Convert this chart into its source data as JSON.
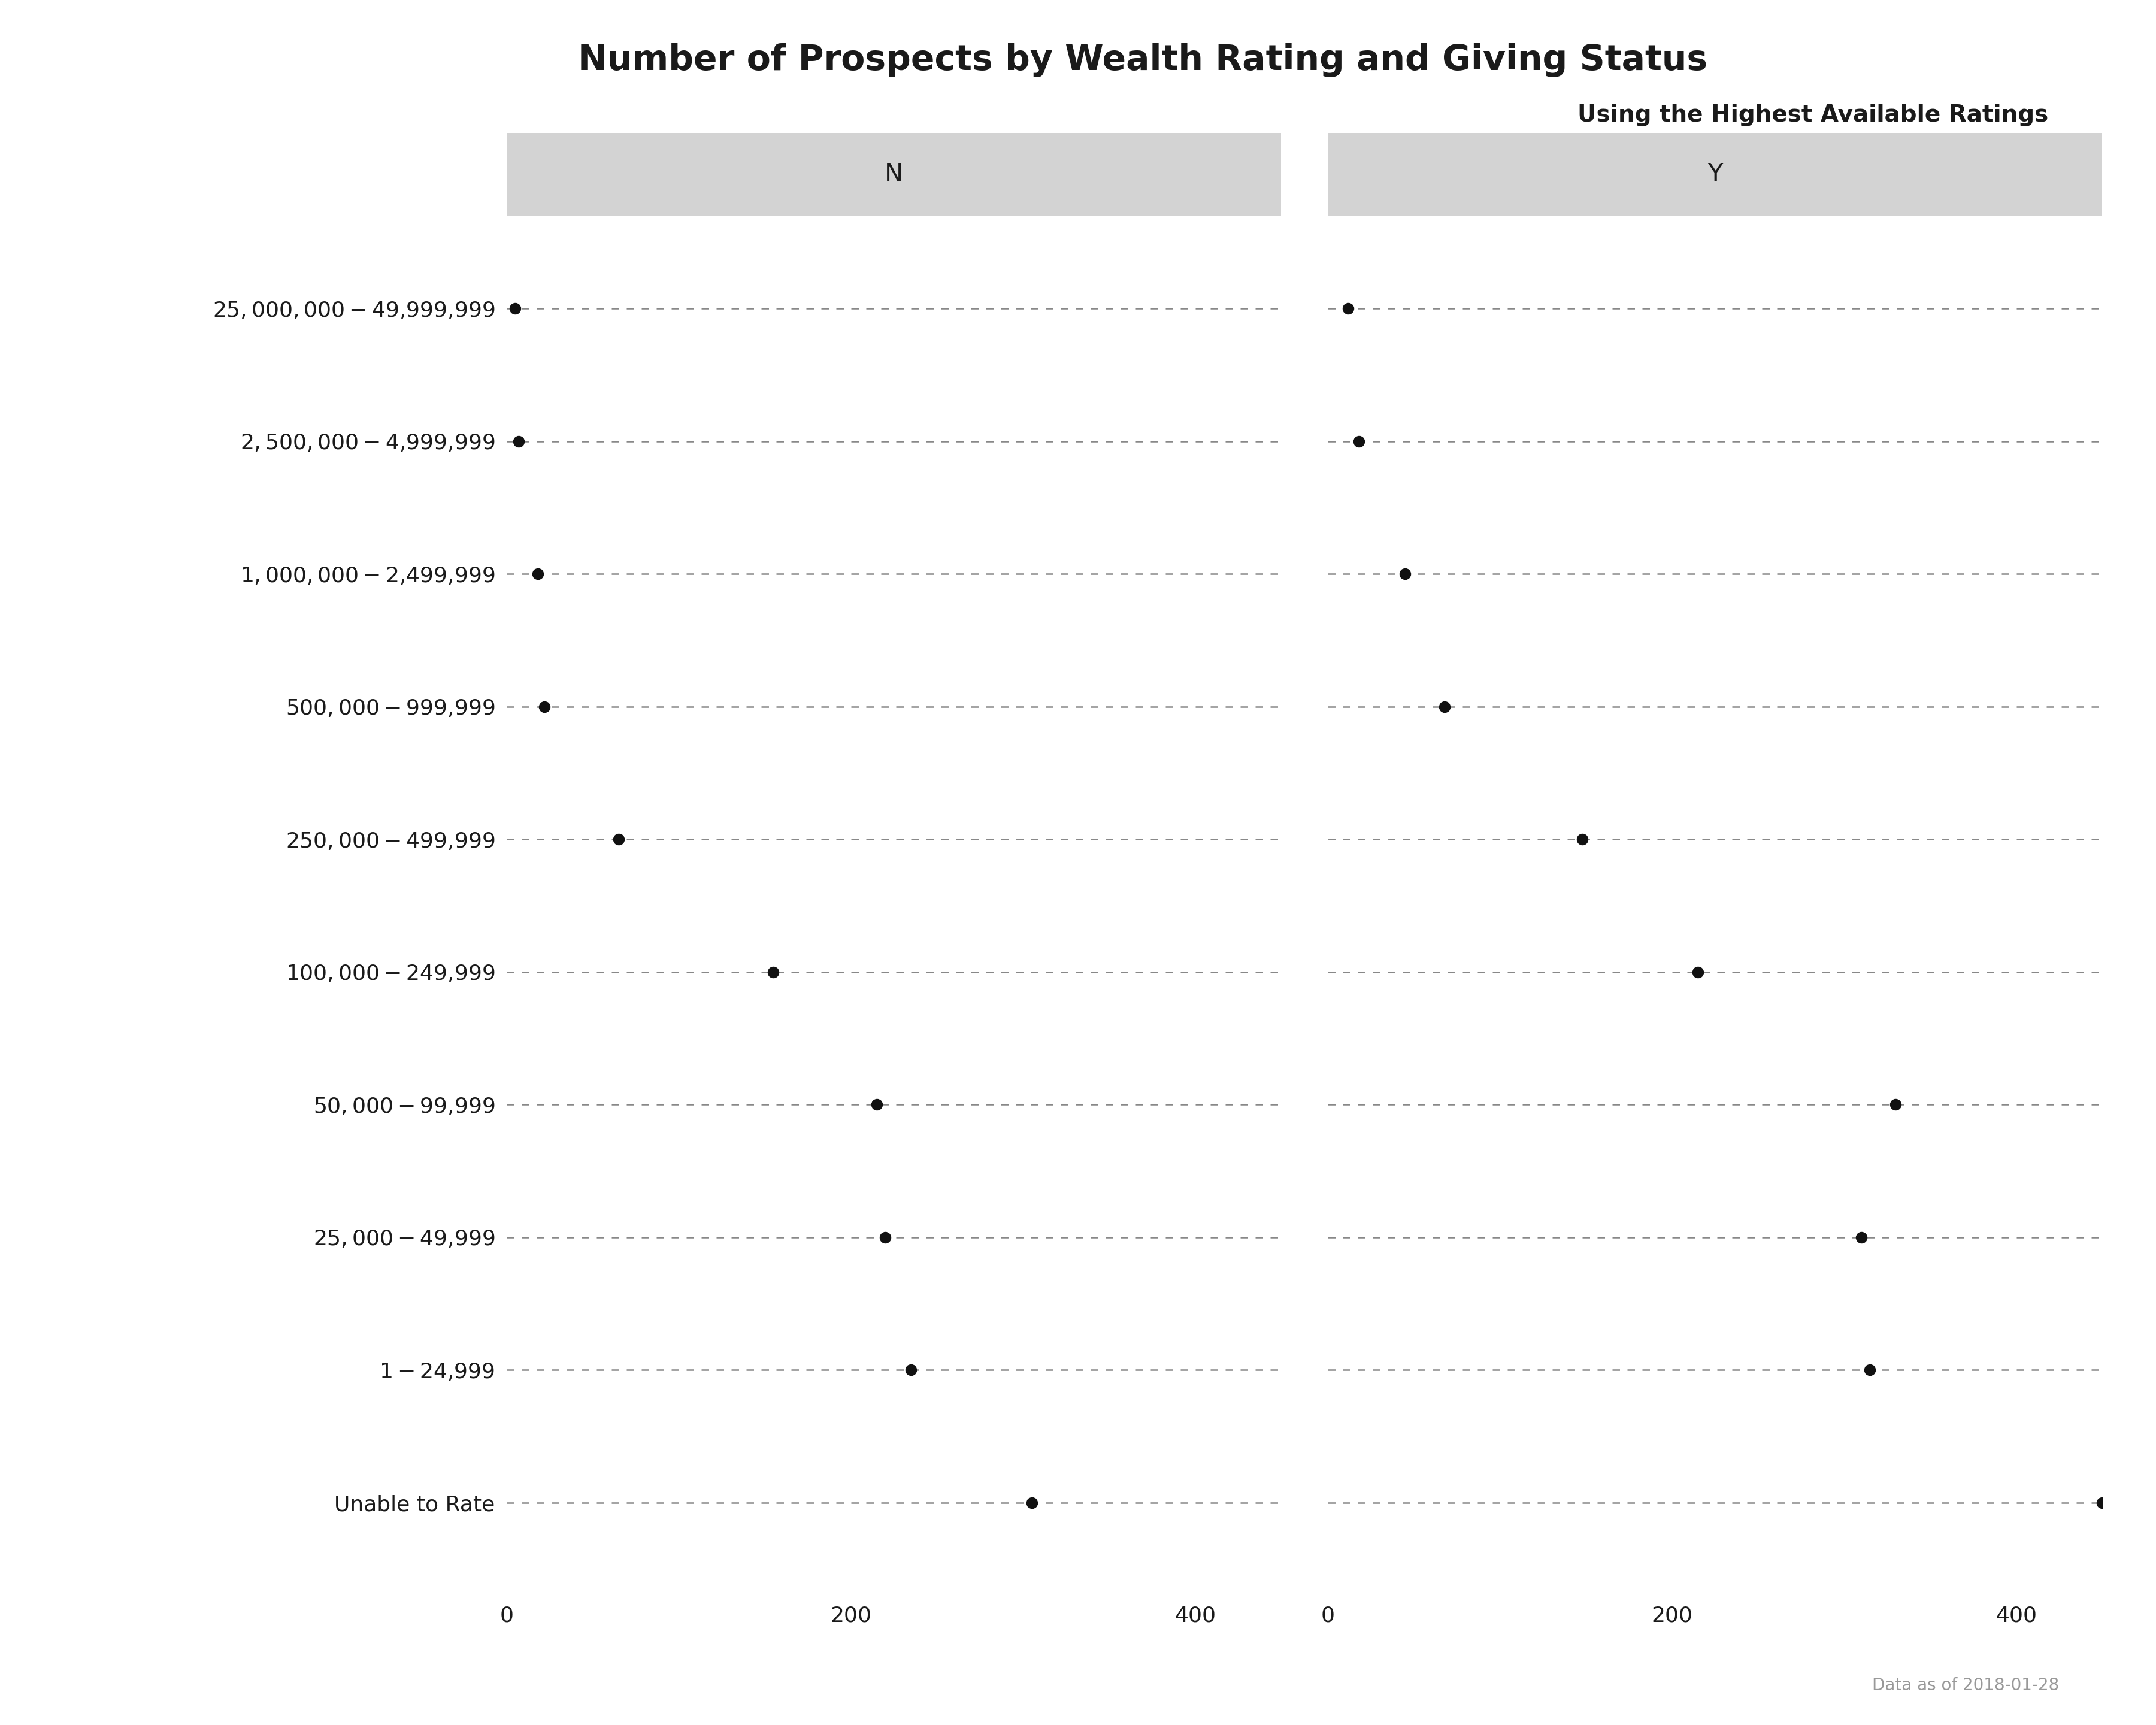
{
  "title": "Number of Prospects by Wealth Rating and Giving Status",
  "subtitle": "Using the Highest Available Ratings",
  "caption": "Data as of 2018-01-28",
  "panels": [
    "N",
    "Y"
  ],
  "categories": [
    "$25,000,000-$49,999,999",
    "$2,500,000-$4,999,999",
    "$1,000,000-$2,499,999",
    "$500,000-$999,999",
    "$250,000-$499,999",
    "$100,000-$249,999",
    "$50,000-$99,999",
    "$25,000-$49,999",
    "$1-$24,999",
    "Unable to Rate"
  ],
  "values_N": [
    5,
    7,
    18,
    22,
    65,
    155,
    215,
    220,
    235,
    305
  ],
  "values_Y": [
    12,
    18,
    45,
    68,
    148,
    215,
    330,
    310,
    315,
    450
  ],
  "xlim": [
    0,
    450
  ],
  "xticks": [
    0,
    200,
    400
  ],
  "background_color": "#ffffff",
  "panel_header_color": "#d3d3d3",
  "dot_color": "#111111",
  "line_color": "#888888",
  "title_fontsize": 42,
  "subtitle_fontsize": 28,
  "label_fontsize": 26,
  "tick_fontsize": 26,
  "caption_fontsize": 20,
  "panel_fontsize": 30
}
